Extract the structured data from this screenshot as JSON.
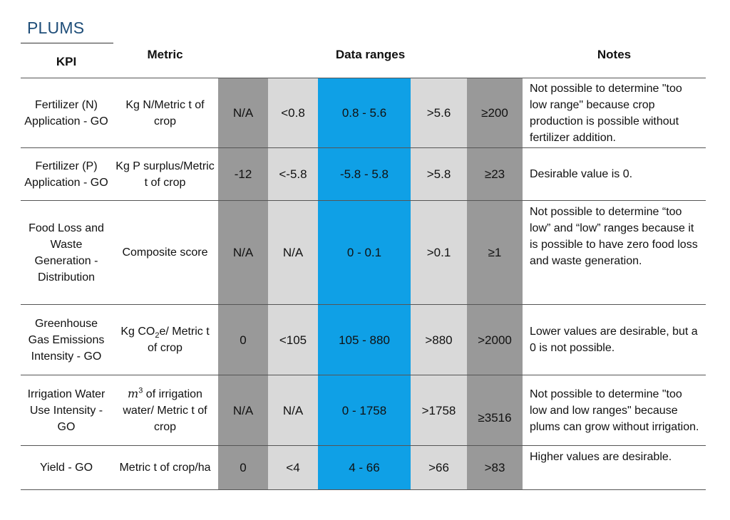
{
  "title": "PLUMS",
  "headers": {
    "kpi": "KPI",
    "metric": "Metric",
    "data_ranges": "Data ranges",
    "notes": "Notes"
  },
  "band_colors": {
    "dark": "#999999",
    "light": "#d9d9d9",
    "blue": "#0fa0e6"
  },
  "rows": [
    {
      "kpi": "Fertilizer (N) Application - GO",
      "metric": "Kg N/Metric t of crop",
      "r1": "N/A",
      "r2": "<0.8",
      "r3": "0.8 - 5.6",
      "r4": ">5.6",
      "r5": "≥200",
      "notes": "Not possible to determine \"too low range\" because crop production is possible without fertilizer addition."
    },
    {
      "kpi": "Fertilizer (P) Application - GO",
      "metric": "Kg P surplus/Metric t of crop",
      "r1": "-12",
      "r2": "<-5.8",
      "r3": "-5.8 - 5.8",
      "r4": ">5.8",
      "r5": "≥23",
      "notes": "Desirable value is 0."
    },
    {
      "kpi": "Food Loss and Waste Generation - Distribution",
      "metric": "Composite score",
      "r1": "N/A",
      "r2": "N/A",
      "r3": "0 - 0.1",
      "r4": ">0.1",
      "r5": "≥1",
      "notes": "Not possible to determine “too low” and “low” ranges because it is possible to have zero food loss and waste generation."
    },
    {
      "kpi": "Greenhouse Gas Emissions Intensity - GO",
      "metric_prefix": "Kg CO",
      "metric_sub": "2",
      "metric_suffix": "e/ Metric t of crop",
      "r1": "0",
      "r2": "<105",
      "r3": "105 - 880",
      "r4": ">880",
      "r5": ">2000",
      "notes": "Lower values are desirable, but a 0 is not possible."
    },
    {
      "kpi": "Irrigation Water Use Intensity - GO",
      "metric_var": "m",
      "metric_sup": "3",
      "metric_suffix": " of irrigation water/ Metric t of crop",
      "r1": "N/A",
      "r2": "N/A",
      "r3": "0 - 1758",
      "r4": ">1758",
      "r5": "≥3516",
      "notes": "Not possible to determine \"too low and low ranges\" because plums can grow without irrigation."
    },
    {
      "kpi": "Yield - GO",
      "metric": "Metric t of crop/ha",
      "r1": "0",
      "r2": "<4",
      "r3": "4 - 66",
      "r4": ">66",
      "r5": ">83",
      "notes": "Higher values are desirable."
    }
  ]
}
